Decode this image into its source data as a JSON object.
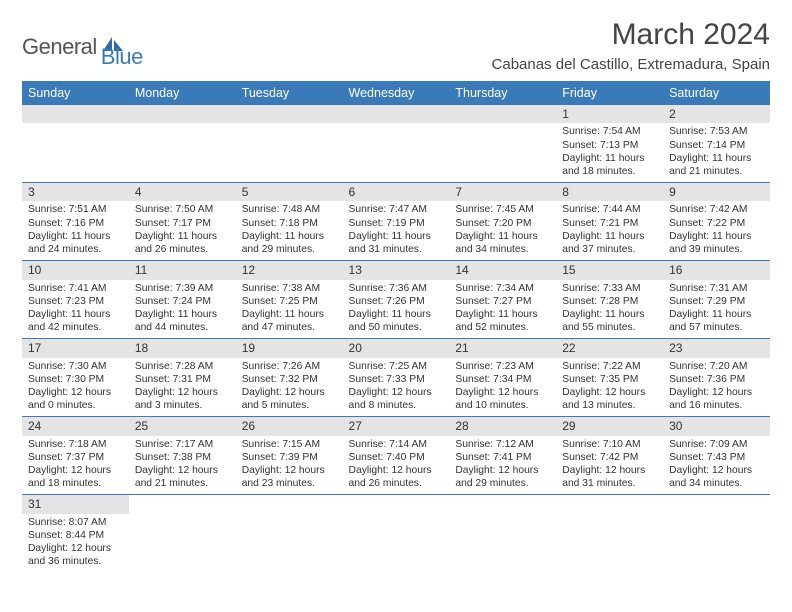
{
  "logo": {
    "general": "General",
    "blue": "Blue"
  },
  "title": "March 2024",
  "location": "Cabanas del Castillo, Extremadura, Spain",
  "colors": {
    "header_bg": "#3a7ab8",
    "header_text": "#ffffff",
    "daybar_bg": "#e4e4e4",
    "border": "#3a7ab8"
  },
  "weekdays": [
    "Sunday",
    "Monday",
    "Tuesday",
    "Wednesday",
    "Thursday",
    "Friday",
    "Saturday"
  ],
  "weeks": [
    [
      null,
      null,
      null,
      null,
      null,
      {
        "n": "1",
        "rise": "7:54 AM",
        "set": "7:13 PM",
        "dl": "11 hours and 18 minutes."
      },
      {
        "n": "2",
        "rise": "7:53 AM",
        "set": "7:14 PM",
        "dl": "11 hours and 21 minutes."
      }
    ],
    [
      {
        "n": "3",
        "rise": "7:51 AM",
        "set": "7:16 PM",
        "dl": "11 hours and 24 minutes."
      },
      {
        "n": "4",
        "rise": "7:50 AM",
        "set": "7:17 PM",
        "dl": "11 hours and 26 minutes."
      },
      {
        "n": "5",
        "rise": "7:48 AM",
        "set": "7:18 PM",
        "dl": "11 hours and 29 minutes."
      },
      {
        "n": "6",
        "rise": "7:47 AM",
        "set": "7:19 PM",
        "dl": "11 hours and 31 minutes."
      },
      {
        "n": "7",
        "rise": "7:45 AM",
        "set": "7:20 PM",
        "dl": "11 hours and 34 minutes."
      },
      {
        "n": "8",
        "rise": "7:44 AM",
        "set": "7:21 PM",
        "dl": "11 hours and 37 minutes."
      },
      {
        "n": "9",
        "rise": "7:42 AM",
        "set": "7:22 PM",
        "dl": "11 hours and 39 minutes."
      }
    ],
    [
      {
        "n": "10",
        "rise": "7:41 AM",
        "set": "7:23 PM",
        "dl": "11 hours and 42 minutes."
      },
      {
        "n": "11",
        "rise": "7:39 AM",
        "set": "7:24 PM",
        "dl": "11 hours and 44 minutes."
      },
      {
        "n": "12",
        "rise": "7:38 AM",
        "set": "7:25 PM",
        "dl": "11 hours and 47 minutes."
      },
      {
        "n": "13",
        "rise": "7:36 AM",
        "set": "7:26 PM",
        "dl": "11 hours and 50 minutes."
      },
      {
        "n": "14",
        "rise": "7:34 AM",
        "set": "7:27 PM",
        "dl": "11 hours and 52 minutes."
      },
      {
        "n": "15",
        "rise": "7:33 AM",
        "set": "7:28 PM",
        "dl": "11 hours and 55 minutes."
      },
      {
        "n": "16",
        "rise": "7:31 AM",
        "set": "7:29 PM",
        "dl": "11 hours and 57 minutes."
      }
    ],
    [
      {
        "n": "17",
        "rise": "7:30 AM",
        "set": "7:30 PM",
        "dl": "12 hours and 0 minutes."
      },
      {
        "n": "18",
        "rise": "7:28 AM",
        "set": "7:31 PM",
        "dl": "12 hours and 3 minutes."
      },
      {
        "n": "19",
        "rise": "7:26 AM",
        "set": "7:32 PM",
        "dl": "12 hours and 5 minutes."
      },
      {
        "n": "20",
        "rise": "7:25 AM",
        "set": "7:33 PM",
        "dl": "12 hours and 8 minutes."
      },
      {
        "n": "21",
        "rise": "7:23 AM",
        "set": "7:34 PM",
        "dl": "12 hours and 10 minutes."
      },
      {
        "n": "22",
        "rise": "7:22 AM",
        "set": "7:35 PM",
        "dl": "12 hours and 13 minutes."
      },
      {
        "n": "23",
        "rise": "7:20 AM",
        "set": "7:36 PM",
        "dl": "12 hours and 16 minutes."
      }
    ],
    [
      {
        "n": "24",
        "rise": "7:18 AM",
        "set": "7:37 PM",
        "dl": "12 hours and 18 minutes."
      },
      {
        "n": "25",
        "rise": "7:17 AM",
        "set": "7:38 PM",
        "dl": "12 hours and 21 minutes."
      },
      {
        "n": "26",
        "rise": "7:15 AM",
        "set": "7:39 PM",
        "dl": "12 hours and 23 minutes."
      },
      {
        "n": "27",
        "rise": "7:14 AM",
        "set": "7:40 PM",
        "dl": "12 hours and 26 minutes."
      },
      {
        "n": "28",
        "rise": "7:12 AM",
        "set": "7:41 PM",
        "dl": "12 hours and 29 minutes."
      },
      {
        "n": "29",
        "rise": "7:10 AM",
        "set": "7:42 PM",
        "dl": "12 hours and 31 minutes."
      },
      {
        "n": "30",
        "rise": "7:09 AM",
        "set": "7:43 PM",
        "dl": "12 hours and 34 minutes."
      }
    ],
    [
      {
        "n": "31",
        "rise": "8:07 AM",
        "set": "8:44 PM",
        "dl": "12 hours and 36 minutes."
      },
      null,
      null,
      null,
      null,
      null,
      null
    ]
  ]
}
